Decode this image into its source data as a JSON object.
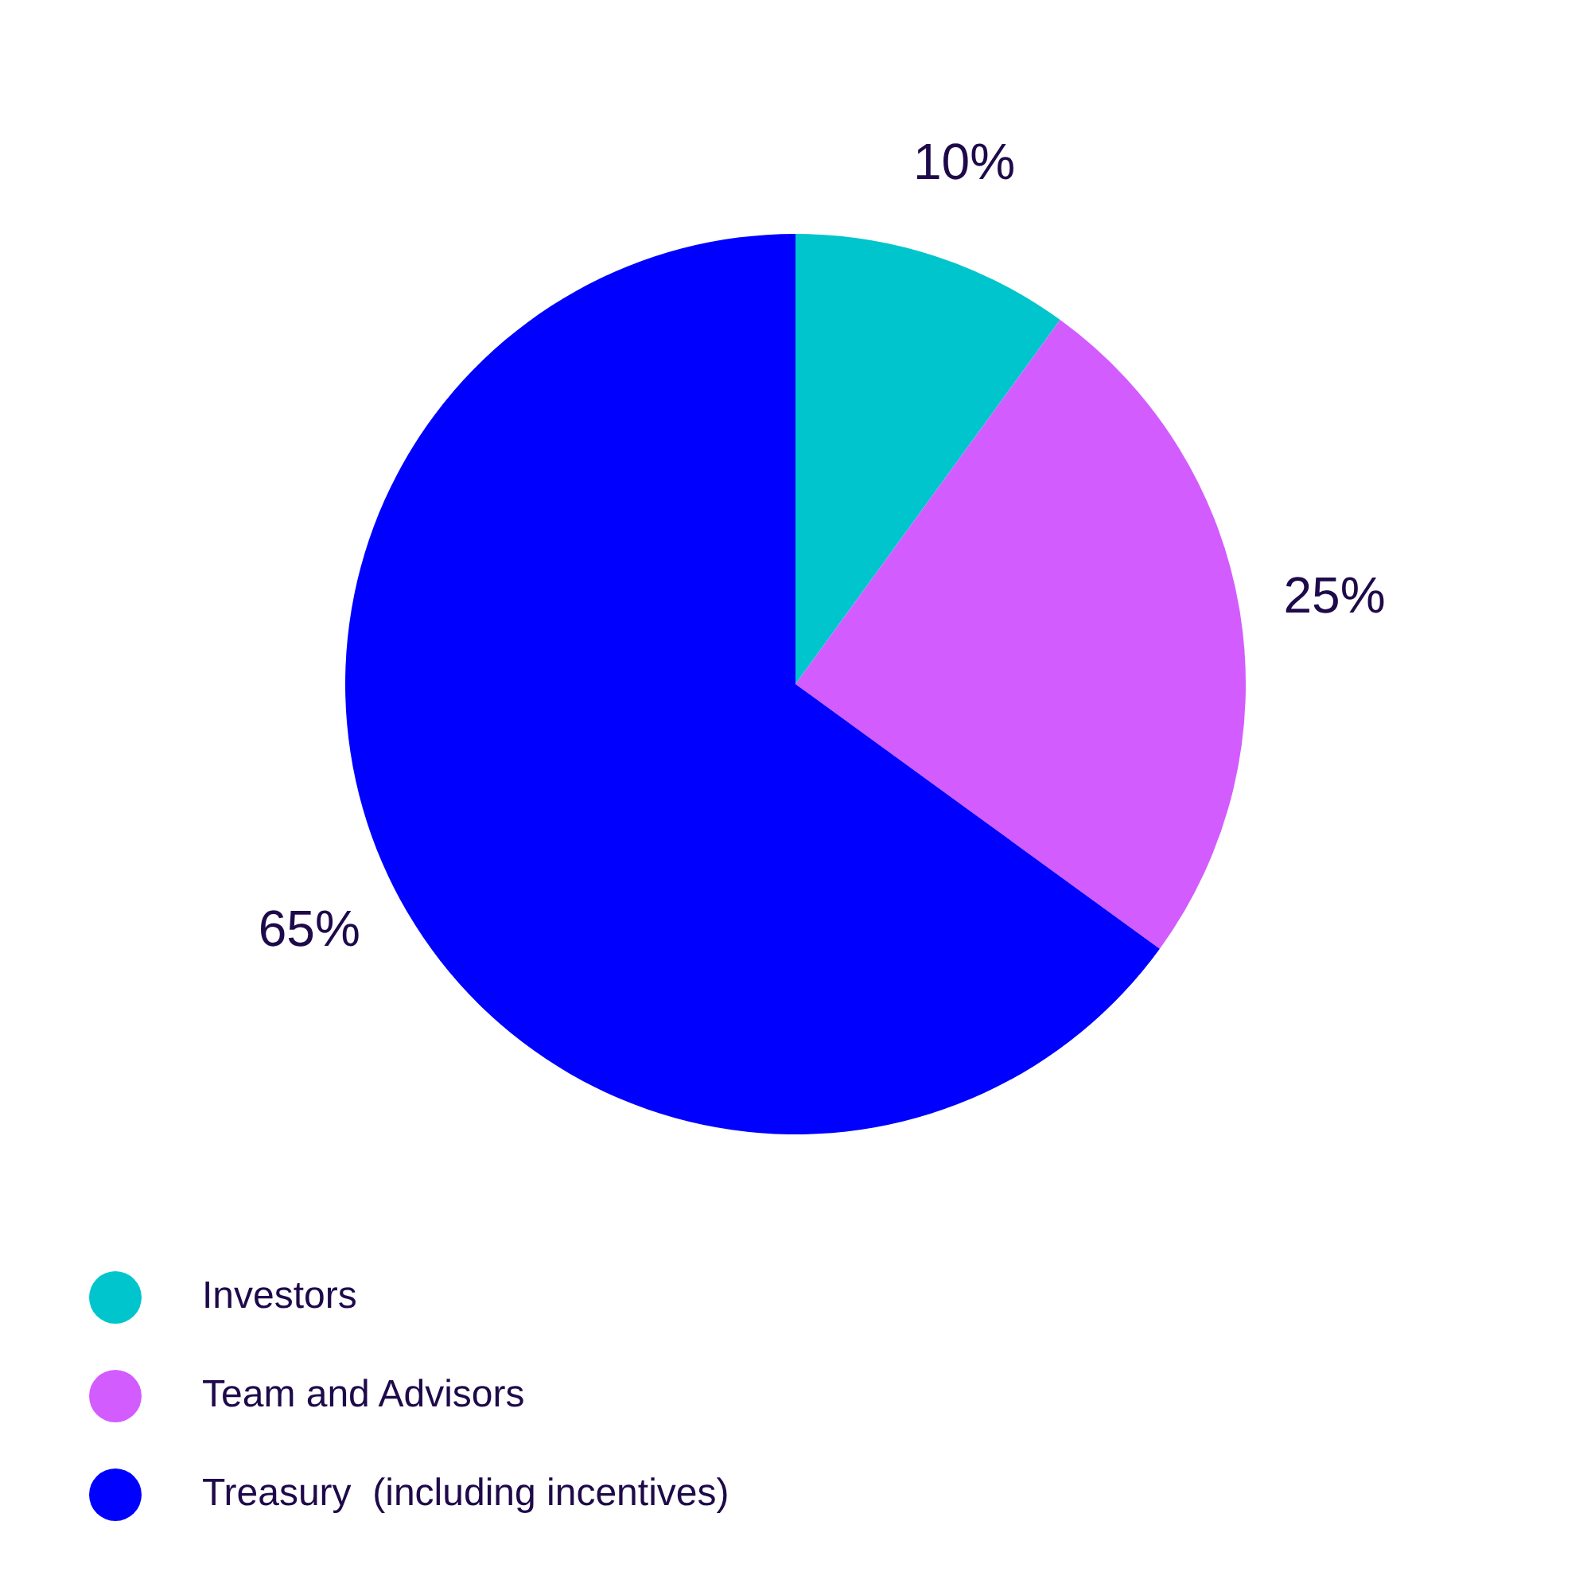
{
  "chart_data": {
    "type": "pie",
    "categories": [
      "Investors",
      "Team and Advisors",
      "Treasury  (including incentives)"
    ],
    "values": [
      10,
      25,
      65
    ],
    "colors": [
      "#00c5cc",
      "#d35cff",
      "#0000ff"
    ],
    "value_labels": [
      "10%",
      "25%",
      "65%"
    ],
    "legend": "bottom left"
  }
}
